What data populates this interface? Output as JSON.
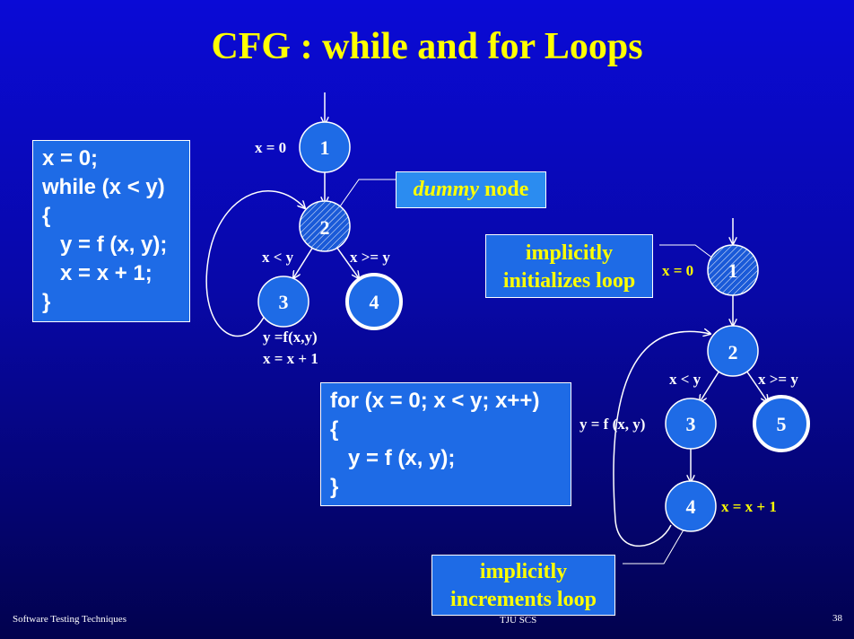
{
  "title": "CFG : while and for Loops",
  "while_code": [
    "x = 0;",
    "while (x < y)",
    "{",
    "   y = f (x, y);",
    "   x = x + 1;",
    "}"
  ],
  "for_code": [
    "for (x = 0; x < y; x++)",
    "{",
    "   y = f (x, y);",
    "}"
  ],
  "callouts": {
    "dummy_italic": "dummy",
    "dummy_rest": " node",
    "init_line1": "implicitly",
    "init_line2": "initializes loop",
    "incr_line1": "implicitly",
    "incr_line2": "increments loop"
  },
  "while_graph": {
    "nodes": [
      "1",
      "2",
      "3",
      "4"
    ],
    "labels": {
      "x_init": "x = 0",
      "true_branch": "x < y",
      "false_branch": "x >= y",
      "body_line1": "y =f(x,y)",
      "body_line2": "x = x + 1"
    }
  },
  "for_graph": {
    "nodes": [
      "1",
      "2",
      "3",
      "4",
      "5"
    ],
    "labels": {
      "x_init": "x = 0",
      "true_branch": "x < y",
      "false_branch": "x >= y",
      "body": "y = f (x, y)",
      "increment": "x = x + 1"
    }
  },
  "footer": {
    "left": "Software Testing Techniques",
    "center": "TJU SCS",
    "page": "38"
  },
  "colors": {
    "title": "#ffff00",
    "box_fill": "#1e6be6",
    "node_fill": "#1e6be6",
    "accent_yellow": "#ffff00"
  }
}
